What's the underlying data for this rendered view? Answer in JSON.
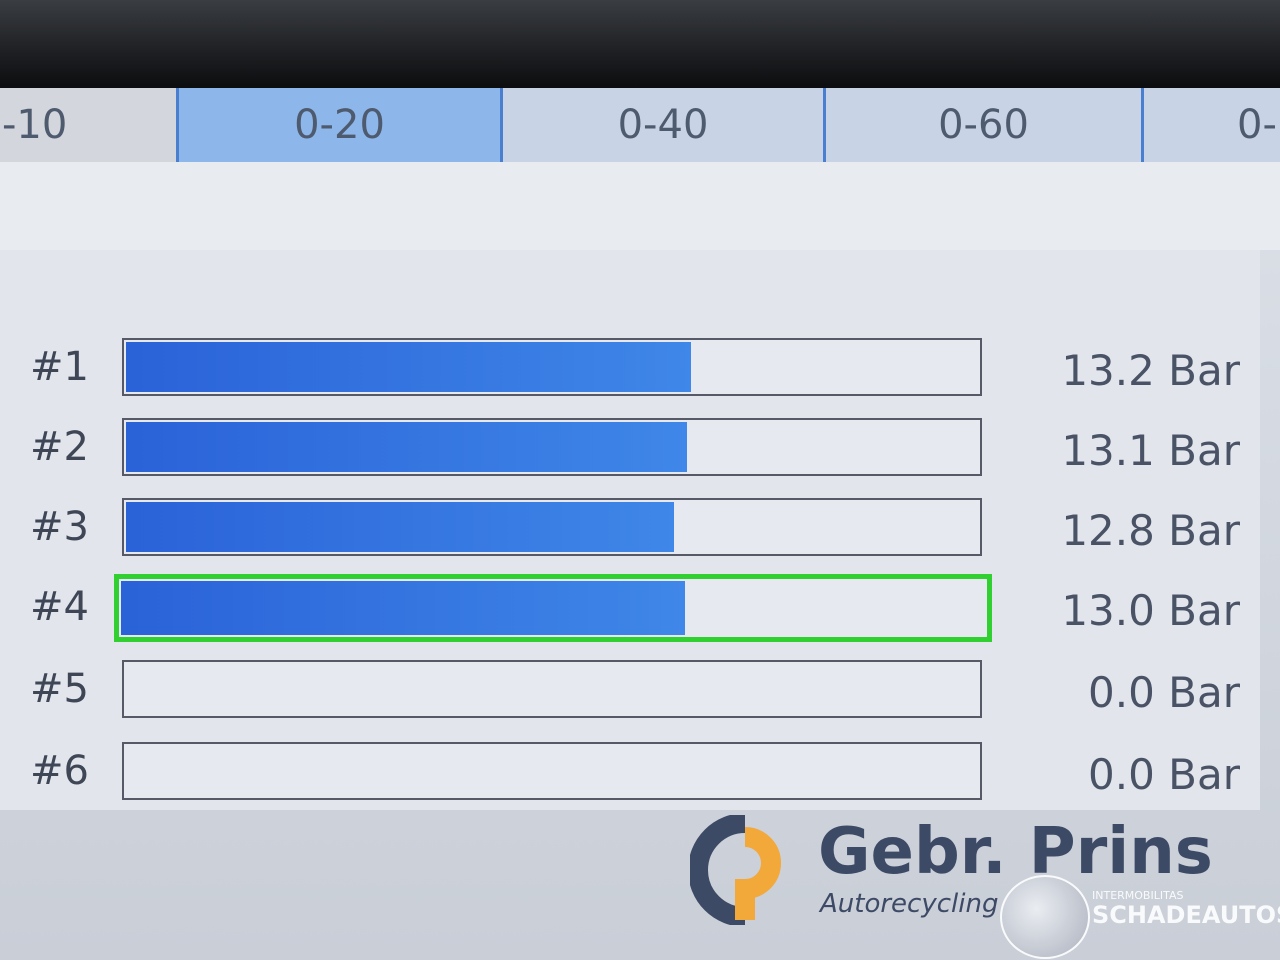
{
  "range_tabs": [
    {
      "label": "-10",
      "selected": false
    },
    {
      "label": "0-20",
      "selected": true
    },
    {
      "label": "0-40",
      "selected": false
    },
    {
      "label": "0-60",
      "selected": false
    },
    {
      "label": "0-",
      "selected": false
    }
  ],
  "scale_max": 20,
  "cylinders": [
    {
      "label": "#1",
      "value": "13.2 Bar",
      "fill": 0.66,
      "selected": false
    },
    {
      "label": "#2",
      "value": "13.1 Bar",
      "fill": 0.655,
      "selected": false
    },
    {
      "label": "#3",
      "value": "12.8 Bar",
      "fill": 0.64,
      "selected": false
    },
    {
      "label": "#4",
      "value": "13.0 Bar",
      "fill": 0.65,
      "selected": true
    },
    {
      "label": "#5",
      "value": "0.0 Bar",
      "fill": 0,
      "selected": false
    },
    {
      "label": "#6",
      "value": "0.0 Bar",
      "fill": 0,
      "selected": false
    }
  ],
  "watermark": {
    "brand": "Gebr. Prins",
    "tagline": "Autorecycling",
    "site_small": "INTERMOBILITAS",
    "site": "SCHADEAUTOS.NL"
  },
  "colors": {
    "bar_fill": "#2a62d8",
    "selected_border": "#2fd02f",
    "selected_tab": "#8db6ea"
  }
}
